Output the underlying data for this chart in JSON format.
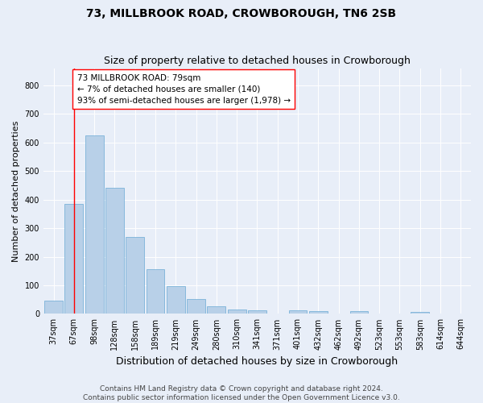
{
  "title": "73, MILLBROOK ROAD, CROWBOROUGH, TN6 2SB",
  "subtitle": "Size of property relative to detached houses in Crowborough",
  "xlabel": "Distribution of detached houses by size in Crowborough",
  "ylabel": "Number of detached properties",
  "categories": [
    "37sqm",
    "67sqm",
    "98sqm",
    "128sqm",
    "158sqm",
    "189sqm",
    "219sqm",
    "249sqm",
    "280sqm",
    "310sqm",
    "341sqm",
    "371sqm",
    "401sqm",
    "432sqm",
    "462sqm",
    "492sqm",
    "523sqm",
    "553sqm",
    "583sqm",
    "614sqm",
    "644sqm"
  ],
  "values": [
    45,
    385,
    625,
    440,
    268,
    155,
    97,
    52,
    27,
    16,
    13,
    0,
    12,
    10,
    0,
    9,
    0,
    0,
    8,
    0,
    0
  ],
  "bar_color": "#b8d0e8",
  "bar_edge_color": "#6aaad4",
  "vline_x_idx": 1,
  "vline_color": "red",
  "annotation_text": "73 MILLBROOK ROAD: 79sqm\n← 7% of detached houses are smaller (140)\n93% of semi-detached houses are larger (1,978) →",
  "annotation_box_color": "white",
  "annotation_box_edge_color": "red",
  "ylim": [
    0,
    860
  ],
  "yticks": [
    0,
    100,
    200,
    300,
    400,
    500,
    600,
    700,
    800
  ],
  "footer_text": "Contains HM Land Registry data © Crown copyright and database right 2024.\nContains public sector information licensed under the Open Government Licence v3.0.",
  "title_fontsize": 10,
  "subtitle_fontsize": 9,
  "xlabel_fontsize": 9,
  "ylabel_fontsize": 8,
  "tick_fontsize": 7,
  "footer_fontsize": 6.5,
  "annotation_fontsize": 7.5,
  "background_color": "#e8eef8",
  "plot_bg_color": "#e8eef8",
  "grid_color": "#ffffff"
}
